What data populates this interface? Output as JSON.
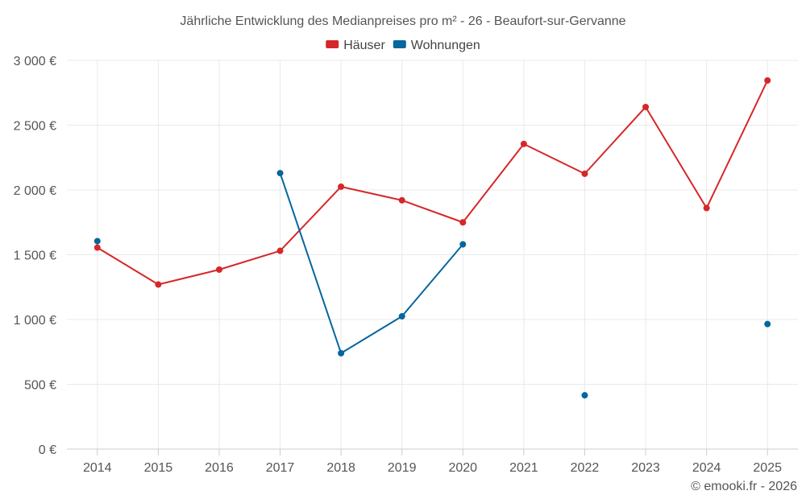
{
  "chart_data": {
    "type": "line",
    "title": "Jährliche Entwicklung des Medianpreises pro m² - 26 - Beaufort-sur-Gervanne",
    "categories": [
      "2014",
      "2015",
      "2016",
      "2017",
      "2018",
      "2019",
      "2020",
      "2021",
      "2022",
      "2023",
      "2024",
      "2025"
    ],
    "ylim": [
      0,
      3000
    ],
    "yticks": [
      0,
      500,
      1000,
      1500,
      2000,
      2500,
      3000
    ],
    "ytick_labels": [
      "0 €",
      "500 €",
      "1 000 €",
      "1 500 €",
      "2 000 €",
      "2 500 €",
      "3 000 €"
    ],
    "grid": true,
    "legend_position": "top-center",
    "series": [
      {
        "name": "Häuser",
        "color": "#d62728",
        "values": [
          1555,
          1270,
          1385,
          1530,
          2025,
          1920,
          1750,
          2355,
          2125,
          2640,
          1860,
          2845
        ]
      },
      {
        "name": "Wohnungen",
        "color": "#06669e",
        "values": [
          1605,
          null,
          null,
          2130,
          740,
          1025,
          1580,
          null,
          415,
          null,
          null,
          965
        ]
      }
    ]
  },
  "credit": "© emooki.fr - 2026"
}
